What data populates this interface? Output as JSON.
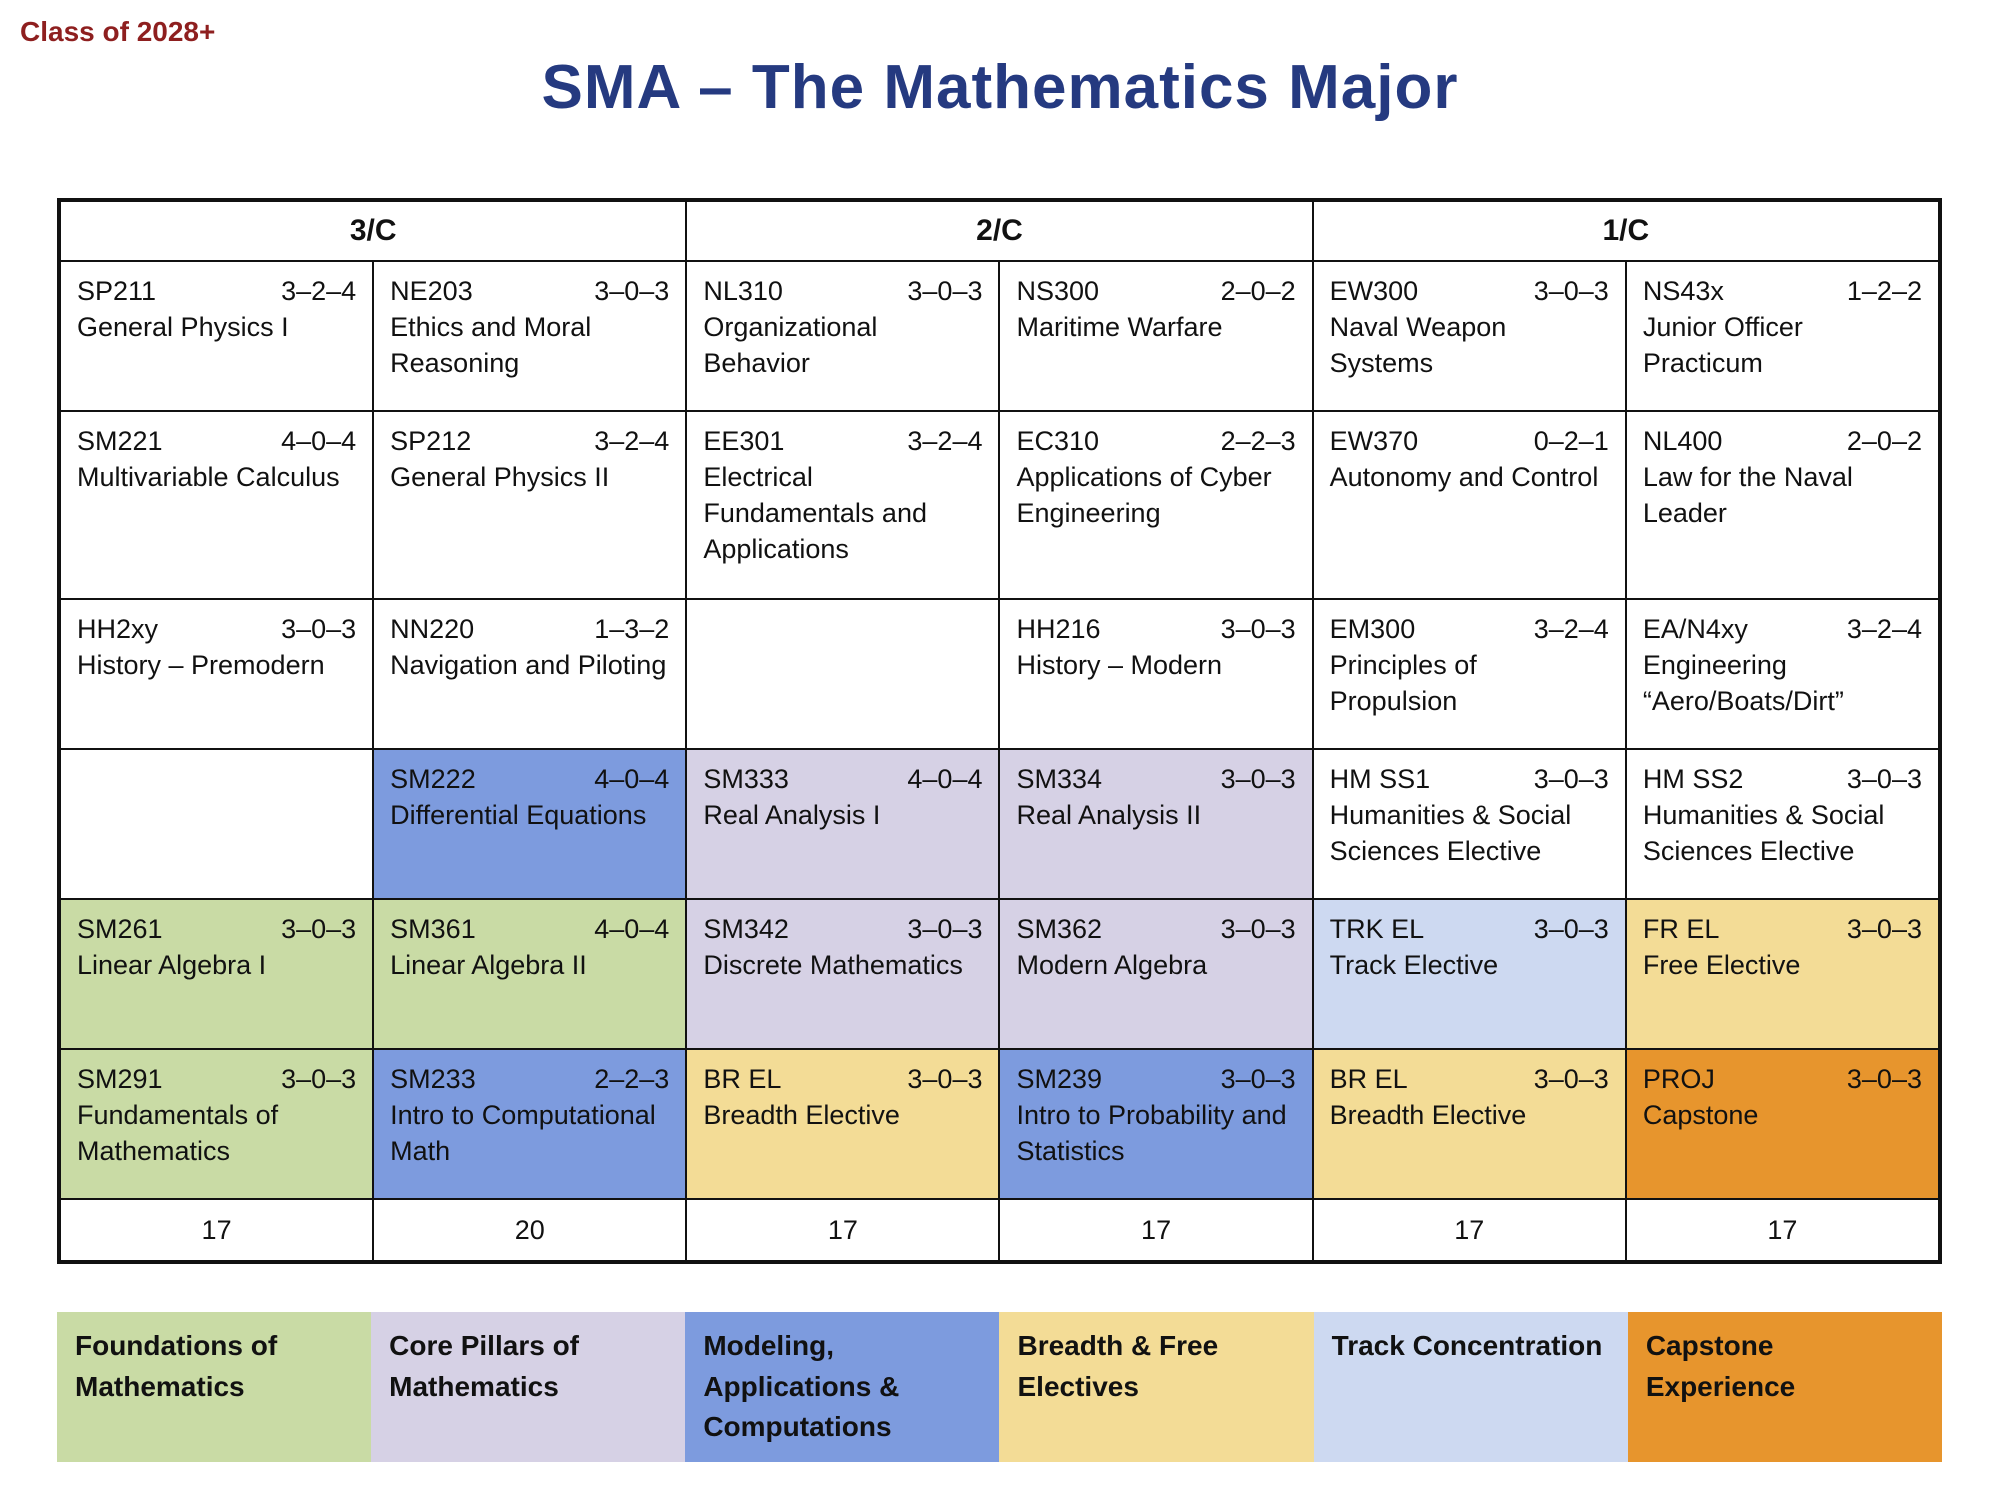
{
  "page": {
    "class_label": "Class of 2028+",
    "title": "SMA  –  The Mathematics Major"
  },
  "colors": {
    "foundations": "#C9DBA5",
    "core_pillars": "#D6D1E5",
    "modeling": "#7D9BDE",
    "breadth_free": "#F3DC96",
    "track": "#CDD9F1",
    "capstone": "#E7952D",
    "title_text": "#253A80",
    "class_text": "#8E1F1F"
  },
  "table": {
    "semesters": [
      "3/C",
      "2/C",
      "1/C"
    ],
    "rows": [
      {
        "cells": [
          {
            "code": "SP211",
            "hours": "3–2–4",
            "title": "General Physics I",
            "category": "none"
          },
          {
            "code": "NE203",
            "hours": "3–0–3",
            "title": "Ethics and Moral Reasoning",
            "category": "none"
          },
          {
            "code": "NL310",
            "hours": "3–0–3",
            "title": "Organizational Behavior",
            "category": "none"
          },
          {
            "code": "NS300",
            "hours": "2–0–2",
            "title": "Maritime Warfare",
            "category": "none"
          },
          {
            "code": "EW300",
            "hours": "3–0–3",
            "title": "Naval Weapon Systems",
            "category": "none"
          },
          {
            "code": "NS43x",
            "hours": "1–2–2",
            "title": "Junior Officer Practicum",
            "category": "none"
          }
        ]
      },
      {
        "cells": [
          {
            "code": "SM221",
            "hours": "4–0–4",
            "title": "Multivariable Calculus",
            "category": "none"
          },
          {
            "code": "SP212",
            "hours": "3–2–4",
            "title": "General Physics II",
            "category": "none"
          },
          {
            "code": "EE301",
            "hours": "3–2–4",
            "title": "Electrical Fundamentals and Applications",
            "category": "none"
          },
          {
            "code": "EC310",
            "hours": "2–2–3",
            "title": "Applications of Cyber Engineering",
            "category": "none"
          },
          {
            "code": "EW370",
            "hours": "0–2–1",
            "title": "Autonomy and Control",
            "category": "none"
          },
          {
            "code": "NL400",
            "hours": "2–0–2",
            "title": "Law for the Naval Leader",
            "category": "none"
          }
        ]
      },
      {
        "cells": [
          {
            "code": "HH2xy",
            "hours": "3–0–3",
            "title": "History – Premodern",
            "category": "none"
          },
          {
            "code": "NN220",
            "hours": "1–3–2",
            "title": "Navigation and Piloting",
            "category": "none"
          },
          {
            "empty": true
          },
          {
            "code": "HH216",
            "hours": "3–0–3",
            "title": "History – Modern",
            "category": "none"
          },
          {
            "code": "EM300",
            "hours": "3–2–4",
            "title": "Principles of Propulsion",
            "category": "none"
          },
          {
            "code": "EA/N4xy",
            "hours": "3–2–4",
            "title": "Engineering “Aero/Boats/Dirt”",
            "category": "none"
          }
        ]
      },
      {
        "cells": [
          {
            "empty": true
          },
          {
            "code": "SM222",
            "hours": "4–0–4",
            "title": "Differential Equations",
            "category": "modeling"
          },
          {
            "code": "SM333",
            "hours": "4–0–4",
            "title": "Real Analysis I",
            "category": "core_pillars"
          },
          {
            "code": "SM334",
            "hours": "3–0–3",
            "title": "Real Analysis II",
            "category": "core_pillars"
          },
          {
            "code": "HM SS1",
            "hours": "3–0–3",
            "title": "Humanities & Social Sciences Elective",
            "category": "none"
          },
          {
            "code": "HM SS2",
            "hours": "3–0–3",
            "title": "Humanities & Social Sciences Elective",
            "category": "none"
          }
        ]
      },
      {
        "cells": [
          {
            "code": "SM261",
            "hours": "3–0–3",
            "title": "Linear Algebra I",
            "category": "foundations"
          },
          {
            "code": "SM361",
            "hours": "4–0–4",
            "title": "Linear Algebra II",
            "category": "foundations"
          },
          {
            "code": "SM342",
            "hours": "3–0–3",
            "title": "Discrete Mathematics",
            "category": "core_pillars"
          },
          {
            "code": "SM362",
            "hours": "3–0–3",
            "title": "Modern Algebra",
            "category": "core_pillars"
          },
          {
            "code": "TRK EL",
            "hours": "3–0–3",
            "title": "Track Elective",
            "category": "track"
          },
          {
            "code": "FR EL",
            "hours": "3–0–3",
            "title": "Free Elective",
            "category": "breadth_free"
          }
        ]
      },
      {
        "cells": [
          {
            "code": "SM291",
            "hours": "3–0–3",
            "title": "Fundamentals of Mathematics",
            "category": "foundations"
          },
          {
            "code": "SM233",
            "hours": "2–2–3",
            "title": "Intro to Computational Math",
            "category": "modeling"
          },
          {
            "code": "BR EL",
            "hours": "3–0–3",
            "title": "Breadth Elective",
            "category": "breadth_free"
          },
          {
            "code": "SM239",
            "hours": "3–0–3",
            "title": "Intro to Probability and Statistics",
            "category": "modeling"
          },
          {
            "code": "BR EL",
            "hours": "3–0–3",
            "title": "Breadth Elective",
            "category": "breadth_free"
          },
          {
            "code": "PROJ",
            "hours": "3–0–3",
            "title": "Capstone",
            "category": "capstone"
          }
        ]
      }
    ],
    "totals": [
      "17",
      "20",
      "17",
      "17",
      "17",
      "17"
    ]
  },
  "legend": [
    {
      "label": "Foundations of Mathematics",
      "color_key": "foundations"
    },
    {
      "label": "Core Pillars of Mathematics",
      "color_key": "core_pillars"
    },
    {
      "label": "Modeling, Applications & Computations",
      "color_key": "modeling"
    },
    {
      "label": "Breadth & Free Electives",
      "color_key": "breadth_free"
    },
    {
      "label": "Track Concentration",
      "color_key": "track"
    },
    {
      "label": "Capstone Experience",
      "color_key": "capstone"
    }
  ]
}
